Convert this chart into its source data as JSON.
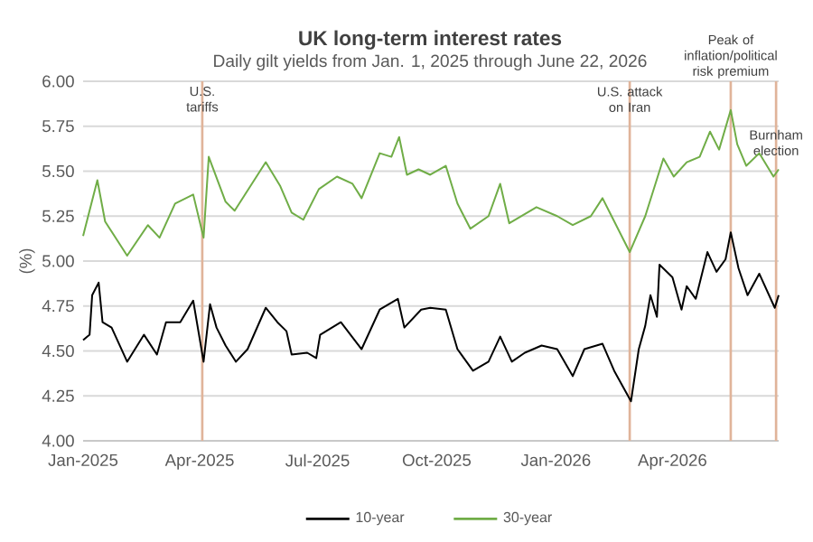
{
  "chart_data": {
    "type": "line",
    "title": "UK long-term interest rates",
    "subtitle": "Daily gilt yields from Jan. 1, 2025 through June 22, 2026",
    "ylabel": "(%)",
    "xlim": [
      "2025-01-01",
      "2026-06-22"
    ],
    "xticks": [
      {
        "value": "2025-01-01",
        "label": "Jan-2025"
      },
      {
        "value": "2025-04-01",
        "label": "Apr-2025"
      },
      {
        "value": "2025-07-01",
        "label": "Jul-2025"
      },
      {
        "value": "2025-10-01",
        "label": "Oct-2025"
      },
      {
        "value": "2026-01-01",
        "label": "Jan-2026"
      },
      {
        "value": "2026-04-01",
        "label": "Apr-2026"
      }
    ],
    "ylim": [
      4,
      6
    ],
    "yticks": [
      {
        "value": 4,
        "label": "4.00"
      },
      {
        "value": 4.25,
        "label": "4.25"
      },
      {
        "value": 4.5,
        "label": "4.50"
      },
      {
        "value": 4.75,
        "label": "4.75"
      },
      {
        "value": 5,
        "label": "5.00"
      },
      {
        "value": 5.25,
        "label": "5.25"
      },
      {
        "value": 5.5,
        "label": "5.50"
      },
      {
        "value": 5.75,
        "label": "5.75"
      },
      {
        "value": 6,
        "label": "6.00"
      }
    ],
    "grid": "y",
    "legend": "bottom",
    "marker": "none",
    "series": [
      {
        "name": "10-year",
        "color": "#000000",
        "x": [
          "2025-01-01",
          "2025-01-06",
          "2025-01-08",
          "2025-01-13",
          "2025-01-16",
          "2025-01-23",
          "2025-02-04",
          "2025-02-17",
          "2025-02-27",
          "2025-03-06",
          "2025-03-17",
          "2025-03-27",
          "2025-04-04",
          "2025-04-09",
          "2025-04-14",
          "2025-04-21",
          "2025-04-29",
          "2025-05-08",
          "2025-05-22",
          "2025-05-31",
          "2025-06-07",
          "2025-06-11",
          "2025-06-23",
          "2025-06-30",
          "2025-07-03",
          "2025-07-19",
          "2025-08-04",
          "2025-08-18",
          "2025-09-01",
          "2025-09-06",
          "2025-09-19",
          "2025-09-26",
          "2025-10-08",
          "2025-10-17",
          "2025-10-29",
          "2025-11-10",
          "2025-11-19",
          "2025-11-28",
          "2025-12-08",
          "2025-12-21",
          "2026-01-02",
          "2026-01-14",
          "2026-01-23",
          "2026-02-06",
          "2026-02-15",
          "2026-02-28",
          "2026-03-06",
          "2026-03-11",
          "2026-03-15",
          "2026-03-20",
          "2026-03-22",
          "2026-04-01",
          "2026-04-08",
          "2026-04-12",
          "2026-04-19",
          "2026-04-28",
          "2026-05-05",
          "2026-05-12",
          "2026-05-16",
          "2026-05-22",
          "2026-05-29",
          "2026-06-07",
          "2026-06-19",
          "2026-06-22"
        ],
        "values": [
          4.56,
          4.59,
          4.81,
          4.88,
          4.66,
          4.63,
          4.44,
          4.59,
          4.48,
          4.66,
          4.66,
          4.78,
          4.44,
          4.76,
          4.63,
          4.53,
          4.44,
          4.51,
          4.74,
          4.66,
          4.61,
          4.48,
          4.49,
          4.46,
          4.59,
          4.66,
          4.51,
          4.73,
          4.79,
          4.63,
          4.73,
          4.74,
          4.73,
          4.51,
          4.39,
          4.44,
          4.58,
          4.44,
          4.49,
          4.53,
          4.51,
          4.36,
          4.51,
          4.54,
          4.39,
          4.22,
          4.51,
          4.64,
          4.81,
          4.69,
          4.98,
          4.91,
          4.73,
          4.86,
          4.79,
          5.05,
          4.94,
          5.01,
          5.16,
          4.96,
          4.81,
          4.93,
          4.74,
          4.81
        ]
      },
      {
        "name": "30-year",
        "color": "#70ad47",
        "x": [
          "2025-01-01",
          "2025-01-12",
          "2025-01-18",
          "2025-02-04",
          "2025-02-20",
          "2025-03-01",
          "2025-03-13",
          "2025-03-27",
          "2025-04-04",
          "2025-04-08",
          "2025-04-21",
          "2025-04-28",
          "2025-05-22",
          "2025-06-02",
          "2025-06-11",
          "2025-06-20",
          "2025-07-02",
          "2025-07-16",
          "2025-07-28",
          "2025-08-04",
          "2025-08-18",
          "2025-08-27",
          "2025-09-02",
          "2025-09-08",
          "2025-09-17",
          "2025-09-26",
          "2025-10-08",
          "2025-10-17",
          "2025-10-27",
          "2025-11-10",
          "2025-11-19",
          "2025-11-26",
          "2025-12-17",
          "2026-01-02",
          "2026-01-14",
          "2026-01-28",
          "2026-02-06",
          "2026-02-13",
          "2026-02-27",
          "2026-03-11",
          "2026-03-25",
          "2026-04-02",
          "2026-04-12",
          "2026-04-22",
          "2026-04-30",
          "2026-05-07",
          "2026-05-16",
          "2026-05-21",
          "2026-05-28",
          "2026-06-07",
          "2026-06-18",
          "2026-06-22"
        ],
        "values": [
          5.14,
          5.45,
          5.22,
          5.03,
          5.2,
          5.13,
          5.32,
          5.37,
          5.13,
          5.58,
          5.33,
          5.28,
          5.55,
          5.42,
          5.27,
          5.23,
          5.4,
          5.47,
          5.43,
          5.35,
          5.6,
          5.58,
          5.69,
          5.48,
          5.51,
          5.48,
          5.53,
          5.32,
          5.18,
          5.25,
          5.43,
          5.21,
          5.3,
          5.25,
          5.2,
          5.25,
          5.35,
          5.25,
          5.05,
          5.25,
          5.57,
          5.47,
          5.55,
          5.58,
          5.72,
          5.62,
          5.84,
          5.65,
          5.53,
          5.6,
          5.47,
          5.51
        ]
      }
    ],
    "ref_lines": [
      {
        "axis": "x",
        "value": "2025-04-03",
        "label": "U.S. tariffs",
        "color": "#e0b49a"
      },
      {
        "axis": "x",
        "value": "2026-02-27",
        "label": "U.S. attack on Iran",
        "color": "#e0b49a"
      },
      {
        "axis": "x",
        "value": "2026-05-16",
        "label": "Peak of inflation/political risk premium",
        "color": "#e0b49a"
      },
      {
        "axis": "x",
        "value": "2026-06-20",
        "label": "Burnham election",
        "color": "#e0b49a"
      }
    ]
  }
}
